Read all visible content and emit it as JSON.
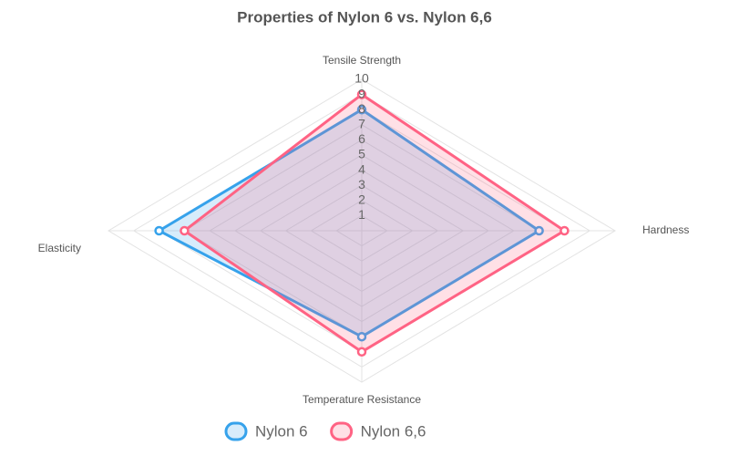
{
  "chart_data": {
    "type": "radar",
    "title": "Properties of Nylon 6 vs. Nylon 6,6",
    "categories": [
      "Tensile Strength",
      "Hardness",
      "Temperature Resistance",
      "Elasticity"
    ],
    "series": [
      {
        "name": "Nylon 6",
        "color": "#36a2eb",
        "values": [
          8,
          7,
          7,
          8
        ]
      },
      {
        "name": "Nylon 6,6",
        "color": "#ff6384",
        "values": [
          9,
          8,
          8,
          7
        ]
      }
    ],
    "rlim": [
      0,
      10
    ],
    "rticks": [
      1,
      2,
      3,
      4,
      5,
      6,
      7,
      8,
      9,
      10
    ],
    "grid": true,
    "legend": "bottom"
  }
}
